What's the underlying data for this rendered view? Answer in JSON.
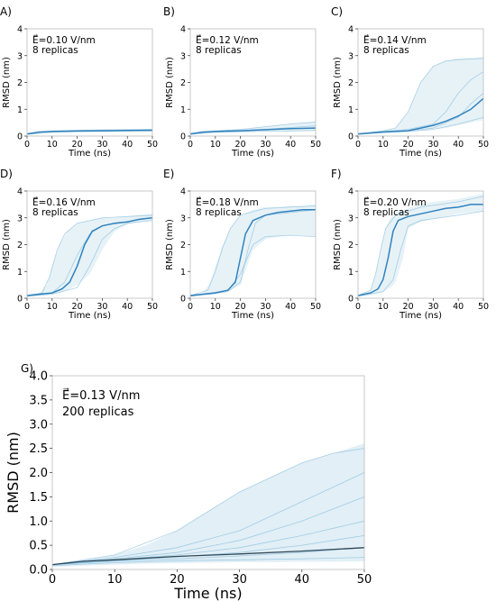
{
  "colors": {
    "band": "#9ecae1",
    "replica": "#6baed6",
    "mean": "#3182bd",
    "mean_large": "#2f4858",
    "axis": "#bbbbbb"
  },
  "chart_data": [
    {
      "panel": "A)",
      "type": "line",
      "xlabel": "Time (ns)",
      "ylabel": "RMSD (nm)",
      "xlim": [
        0,
        50
      ],
      "ylim": [
        0,
        4
      ],
      "xticks": [
        0,
        10,
        20,
        30,
        40,
        50
      ],
      "yticks": [
        0,
        1,
        2,
        3,
        4
      ],
      "field": "E⃗=0.10 V/nm",
      "replicas_text": "8 replicas",
      "mean": {
        "x": [
          0,
          5,
          10,
          20,
          30,
          40,
          50
        ],
        "y": [
          0.08,
          0.15,
          0.17,
          0.19,
          0.2,
          0.21,
          0.22
        ]
      },
      "band": {
        "x": [
          0,
          10,
          20,
          30,
          40,
          50
        ],
        "low": [
          0.05,
          0.13,
          0.15,
          0.16,
          0.17,
          0.18
        ],
        "high": [
          0.1,
          0.2,
          0.22,
          0.24,
          0.25,
          0.26
        ]
      },
      "replicas": [
        {
          "x": [
            0,
            10,
            20,
            30,
            40,
            50
          ],
          "y": [
            0.08,
            0.19,
            0.21,
            0.23,
            0.24,
            0.25
          ]
        },
        {
          "x": [
            0,
            10,
            20,
            30,
            40,
            50
          ],
          "y": [
            0.06,
            0.14,
            0.16,
            0.17,
            0.18,
            0.19
          ]
        }
      ]
    },
    {
      "panel": "B)",
      "type": "line",
      "xlabel": "Time (ns)",
      "ylabel": "RMSD (nm)",
      "xlim": [
        0,
        50
      ],
      "ylim": [
        0,
        4
      ],
      "xticks": [
        0,
        10,
        20,
        30,
        40,
        50
      ],
      "yticks": [
        0,
        1,
        2,
        3,
        4
      ],
      "field": "E⃗=0.12 V/nm",
      "replicas_text": "8 replicas",
      "mean": {
        "x": [
          0,
          5,
          10,
          20,
          30,
          40,
          50
        ],
        "y": [
          0.08,
          0.15,
          0.17,
          0.2,
          0.24,
          0.28,
          0.3
        ]
      },
      "band": {
        "x": [
          0,
          10,
          20,
          30,
          40,
          50
        ],
        "low": [
          0.05,
          0.13,
          0.15,
          0.17,
          0.18,
          0.2
        ],
        "high": [
          0.1,
          0.2,
          0.26,
          0.36,
          0.46,
          0.55
        ]
      },
      "replicas": [
        {
          "x": [
            0,
            10,
            20,
            30,
            40,
            50
          ],
          "y": [
            0.08,
            0.19,
            0.25,
            0.35,
            0.45,
            0.52
          ]
        },
        {
          "x": [
            0,
            10,
            20,
            30,
            40,
            50
          ],
          "y": [
            0.07,
            0.17,
            0.2,
            0.25,
            0.32,
            0.38
          ]
        },
        {
          "x": [
            0,
            10,
            20,
            30,
            40,
            50
          ],
          "y": [
            0.06,
            0.14,
            0.16,
            0.18,
            0.19,
            0.21
          ]
        }
      ]
    },
    {
      "panel": "C)",
      "type": "line",
      "xlabel": "Time (ns)",
      "ylabel": "RMSD (nm)",
      "xlim": [
        0,
        50
      ],
      "ylim": [
        0,
        4
      ],
      "xticks": [
        0,
        10,
        20,
        30,
        40,
        50
      ],
      "yticks": [
        0,
        1,
        2,
        3,
        4
      ],
      "field": "E⃗=0.14 V/nm",
      "replicas_text": "8 replicas",
      "mean": {
        "x": [
          0,
          10,
          20,
          25,
          30,
          35,
          40,
          45,
          50
        ],
        "y": [
          0.08,
          0.15,
          0.2,
          0.3,
          0.4,
          0.55,
          0.75,
          1.0,
          1.4
        ]
      },
      "band": {
        "x": [
          0,
          10,
          15,
          20,
          25,
          30,
          35,
          40,
          45,
          50
        ],
        "low": [
          0.05,
          0.12,
          0.15,
          0.17,
          0.2,
          0.25,
          0.3,
          0.4,
          0.5,
          0.6
        ],
        "high": [
          0.1,
          0.2,
          0.3,
          0.9,
          2.0,
          2.6,
          2.8,
          2.9,
          2.9,
          2.95
        ]
      },
      "replicas": [
        {
          "x": [
            0,
            10,
            15,
            20,
            25,
            30,
            35,
            40,
            50
          ],
          "y": [
            0.08,
            0.2,
            0.3,
            0.9,
            2.0,
            2.6,
            2.8,
            2.85,
            2.9
          ]
        },
        {
          "x": [
            0,
            10,
            20,
            30,
            35,
            40,
            45,
            50
          ],
          "y": [
            0.08,
            0.17,
            0.25,
            0.45,
            0.9,
            1.6,
            2.1,
            2.4
          ]
        },
        {
          "x": [
            0,
            10,
            20,
            30,
            40,
            45,
            50
          ],
          "y": [
            0.07,
            0.15,
            0.2,
            0.3,
            0.7,
            1.2,
            1.6
          ]
        },
        {
          "x": [
            0,
            10,
            20,
            30,
            40,
            50
          ],
          "y": [
            0.06,
            0.13,
            0.17,
            0.25,
            0.45,
            0.7
          ]
        }
      ]
    },
    {
      "panel": "D)",
      "type": "line",
      "xlabel": "Time (ns)",
      "ylabel": "RMSD (nm)",
      "xlim": [
        0,
        50
      ],
      "ylim": [
        0,
        4
      ],
      "xticks": [
        0,
        10,
        20,
        30,
        40,
        50
      ],
      "yticks": [
        0,
        1,
        2,
        3,
        4
      ],
      "field": "E⃗=0.16 V/nm",
      "replicas_text": "8 replicas",
      "mean": {
        "x": [
          0,
          5,
          10,
          14,
          17,
          20,
          23,
          26,
          30,
          35,
          40,
          45,
          50
        ],
        "y": [
          0.1,
          0.15,
          0.2,
          0.35,
          0.6,
          1.2,
          2.0,
          2.5,
          2.7,
          2.8,
          2.85,
          2.95,
          3.0
        ]
      },
      "band": {
        "x": [
          0,
          5,
          8,
          10,
          13,
          16,
          20,
          25,
          30,
          35,
          40,
          45,
          50
        ],
        "low": [
          0.05,
          0.1,
          0.12,
          0.15,
          0.2,
          0.3,
          0.5,
          0.9,
          1.8,
          2.5,
          2.75,
          2.85,
          2.9
        ],
        "high": [
          0.1,
          0.2,
          0.5,
          1.2,
          2.0,
          2.5,
          2.8,
          2.9,
          3.0,
          3.0,
          3.05,
          3.1,
          3.15
        ]
      },
      "replicas": [
        {
          "x": [
            0,
            6,
            9,
            12,
            15,
            20,
            30,
            50
          ],
          "y": [
            0.1,
            0.2,
            0.8,
            1.8,
            2.4,
            2.8,
            3.0,
            3.1
          ]
        },
        {
          "x": [
            0,
            10,
            15,
            20,
            25,
            30,
            40,
            50
          ],
          "y": [
            0.08,
            0.2,
            0.6,
            1.6,
            2.4,
            2.7,
            2.85,
            3.0
          ]
        },
        {
          "x": [
            0,
            10,
            20,
            25,
            30,
            35,
            40,
            50
          ],
          "y": [
            0.07,
            0.15,
            0.4,
            1.2,
            2.2,
            2.6,
            2.8,
            2.9
          ]
        }
      ]
    },
    {
      "panel": "E)",
      "type": "line",
      "xlabel": "Time (ns)",
      "ylabel": "RMSD (nm)",
      "xlim": [
        0,
        50
      ],
      "ylim": [
        0,
        4
      ],
      "xticks": [
        0,
        10,
        20,
        30,
        40,
        50
      ],
      "yticks": [
        0,
        1,
        2,
        3,
        4
      ],
      "field": "E⃗=0.18 V/nm",
      "replicas_text": "8 replicas",
      "mean": {
        "x": [
          0,
          5,
          10,
          15,
          18,
          20,
          22,
          25,
          30,
          35,
          40,
          45,
          50
        ],
        "y": [
          0.1,
          0.15,
          0.2,
          0.3,
          0.6,
          1.5,
          2.4,
          2.9,
          3.1,
          3.2,
          3.25,
          3.3,
          3.3
        ]
      },
      "band": {
        "x": [
          0,
          5,
          8,
          10,
          13,
          16,
          20,
          25,
          30,
          35,
          40,
          45,
          50
        ],
        "low": [
          0.05,
          0.1,
          0.12,
          0.15,
          0.2,
          0.3,
          0.5,
          1.8,
          2.2,
          2.3,
          2.35,
          2.35,
          2.3
        ],
        "high": [
          0.1,
          0.2,
          0.6,
          1.2,
          2.0,
          2.6,
          3.1,
          3.3,
          3.4,
          3.4,
          3.45,
          3.45,
          3.5
        ]
      },
      "replicas": [
        {
          "x": [
            0,
            7,
            10,
            13,
            16,
            20,
            30,
            50
          ],
          "y": [
            0.1,
            0.3,
            1.0,
            1.9,
            2.6,
            3.1,
            3.35,
            3.45
          ]
        },
        {
          "x": [
            0,
            15,
            20,
            25,
            30,
            40,
            50
          ],
          "y": [
            0.08,
            0.3,
            0.9,
            2.0,
            2.3,
            2.35,
            2.3
          ]
        },
        {
          "x": [
            0,
            15,
            20,
            23,
            26,
            30,
            40,
            50
          ],
          "y": [
            0.07,
            0.25,
            0.6,
            1.8,
            2.8,
            3.1,
            3.2,
            3.3
          ]
        }
      ]
    },
    {
      "panel": "F)",
      "type": "line",
      "xlabel": "Time (ns)",
      "ylabel": "RMSD (nm)",
      "xlim": [
        0,
        50
      ],
      "ylim": [
        0,
        4
      ],
      "xticks": [
        0,
        10,
        20,
        30,
        40,
        50
      ],
      "yticks": [
        0,
        1,
        2,
        3,
        4
      ],
      "field": "E⃗=0.20 V/nm",
      "replicas_text": "8 replicas",
      "mean": {
        "x": [
          0,
          5,
          8,
          10,
          12,
          14,
          16,
          20,
          25,
          30,
          35,
          40,
          45,
          50
        ],
        "y": [
          0.1,
          0.2,
          0.35,
          0.7,
          1.5,
          2.5,
          2.9,
          3.05,
          3.15,
          3.25,
          3.35,
          3.4,
          3.5,
          3.5
        ]
      },
      "band": {
        "x": [
          0,
          5,
          7,
          9,
          11,
          13,
          15,
          18,
          20,
          25,
          30,
          35,
          40,
          45,
          50
        ],
        "low": [
          0.05,
          0.1,
          0.15,
          0.2,
          0.3,
          0.4,
          0.6,
          1.5,
          2.6,
          2.85,
          2.95,
          3.05,
          3.15,
          3.2,
          3.25
        ],
        "high": [
          0.1,
          0.3,
          0.9,
          1.8,
          2.6,
          3.0,
          3.2,
          3.3,
          3.35,
          3.5,
          3.6,
          3.65,
          3.7,
          3.8,
          3.9
        ]
      },
      "replicas": [
        {
          "x": [
            0,
            5,
            7,
            9,
            11,
            15,
            25,
            40,
            50
          ],
          "y": [
            0.1,
            0.3,
            0.9,
            1.8,
            2.6,
            3.1,
            3.4,
            3.6,
            3.8
          ]
        },
        {
          "x": [
            0,
            10,
            14,
            17,
            20,
            25,
            40,
            50
          ],
          "y": [
            0.08,
            0.25,
            0.7,
            1.8,
            2.7,
            2.9,
            3.1,
            3.25
          ]
        }
      ]
    },
    {
      "panel": "G)",
      "type": "line",
      "xlabel": "Time (ns)",
      "ylabel": "RMSD (nm)",
      "xlim": [
        0,
        50
      ],
      "ylim": [
        0,
        4
      ],
      "xticks": [
        0,
        10,
        20,
        30,
        40,
        50
      ],
      "yticks": [
        0.0,
        0.5,
        1.0,
        1.5,
        2.0,
        2.5,
        3.0,
        3.5,
        4.0
      ],
      "yticklabels": [
        "0.0",
        "0.5",
        "1.0",
        "1.5",
        "2.0",
        "2.5",
        "3.0",
        "3.5",
        "4.0"
      ],
      "field": "E⃗=0.13 V/nm",
      "replicas_text": "200 replicas",
      "mean": {
        "x": [
          0,
          5,
          10,
          20,
          30,
          40,
          50
        ],
        "y": [
          0.1,
          0.17,
          0.2,
          0.27,
          0.32,
          0.38,
          0.45
        ]
      },
      "band": {
        "x": [
          0,
          5,
          10,
          15,
          20,
          25,
          30,
          35,
          40,
          45,
          50
        ],
        "low": [
          0.05,
          0.08,
          0.1,
          0.12,
          0.13,
          0.14,
          0.15,
          0.15,
          0.16,
          0.16,
          0.17
        ],
        "high": [
          0.1,
          0.2,
          0.3,
          0.5,
          0.8,
          1.2,
          1.6,
          1.9,
          2.2,
          2.4,
          2.6
        ]
      },
      "replicas": [
        {
          "x": [
            0,
            10,
            20,
            25,
            30,
            35,
            40,
            45,
            50
          ],
          "y": [
            0.1,
            0.3,
            0.8,
            1.2,
            1.6,
            1.9,
            2.2,
            2.4,
            2.5
          ]
        },
        {
          "x": [
            0,
            10,
            20,
            30,
            40,
            50
          ],
          "y": [
            0.1,
            0.25,
            0.45,
            0.8,
            1.4,
            2.0
          ]
        },
        {
          "x": [
            0,
            10,
            20,
            30,
            40,
            50
          ],
          "y": [
            0.1,
            0.22,
            0.35,
            0.6,
            1.0,
            1.5
          ]
        },
        {
          "x": [
            0,
            10,
            20,
            30,
            40,
            50
          ],
          "y": [
            0.1,
            0.2,
            0.3,
            0.45,
            0.7,
            1.0
          ]
        },
        {
          "x": [
            0,
            10,
            20,
            30,
            40,
            50
          ],
          "y": [
            0.1,
            0.18,
            0.26,
            0.35,
            0.5,
            0.7
          ]
        },
        {
          "x": [
            0,
            10,
            20,
            30,
            40,
            50
          ],
          "y": [
            0.1,
            0.17,
            0.22,
            0.28,
            0.35,
            0.45
          ]
        },
        {
          "x": [
            0,
            10,
            20,
            30,
            40,
            50
          ],
          "y": [
            0.08,
            0.14,
            0.18,
            0.2,
            0.22,
            0.25
          ]
        }
      ]
    }
  ]
}
